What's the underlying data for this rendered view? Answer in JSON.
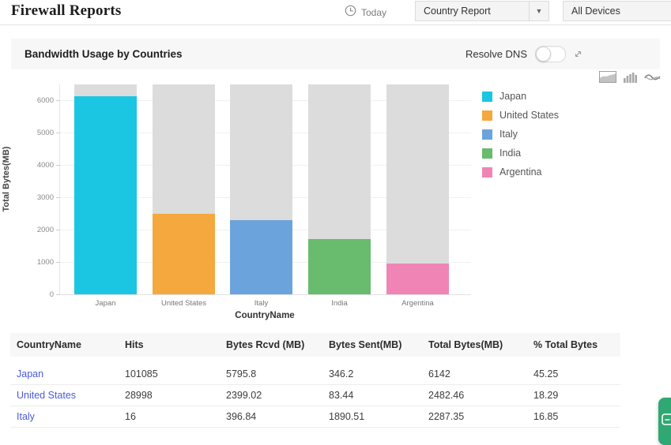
{
  "header": {
    "title": "Firewall Reports",
    "time_filter_label": "Today",
    "report_dropdown_value": "Country Report",
    "devices_dropdown_value": "All Devices"
  },
  "section": {
    "title": "Bandwidth Usage by Countries",
    "resolve_dns_label": "Resolve DNS",
    "resolve_dns_state": "off"
  },
  "chart_toolbar": {
    "icons": [
      "area-chart",
      "bar-chart",
      "line-chart"
    ]
  },
  "chart_data": {
    "type": "bar",
    "title": "Bandwidth Usage by Countries",
    "categories": [
      "Japan",
      "United States",
      "Italy",
      "India",
      "Argentina"
    ],
    "values": [
      6142,
      2482.46,
      2287.35,
      1700,
      950
    ],
    "colors": [
      "#1ac6e2",
      "#f5a83e",
      "#6ba4dc",
      "#69bb6e",
      "#f085b5"
    ],
    "track_color": "#dcdcdc",
    "xlabel": "CountryName",
    "ylabel": "Total Bytes(MB)",
    "yticks": [
      0,
      1000,
      2000,
      3000,
      4000,
      5000,
      6000
    ],
    "ylim": [
      0,
      6500
    ],
    "grid": true,
    "legend_position": "right",
    "legend": [
      "Japan",
      "United States",
      "Italy",
      "India",
      "Argentina"
    ]
  },
  "table": {
    "columns": [
      "CountryName",
      "Hits",
      "Bytes Rcvd (MB)",
      "Bytes Sent(MB)",
      "Total Bytes(MB)",
      "% Total Bytes"
    ],
    "rows": [
      [
        "Japan",
        "101085",
        "5795.8",
        "346.2",
        "6142",
        "45.25"
      ],
      [
        "United States",
        "28998",
        "2399.02",
        "83.44",
        "2482.46",
        "18.29"
      ],
      [
        "Italy",
        "16",
        "396.84",
        "1890.51",
        "2287.35",
        "16.85"
      ]
    ]
  },
  "colors": {
    "link": "#4a5ae0",
    "section_bg": "#f7f7f7",
    "float_widget_green": "#2fa873"
  }
}
